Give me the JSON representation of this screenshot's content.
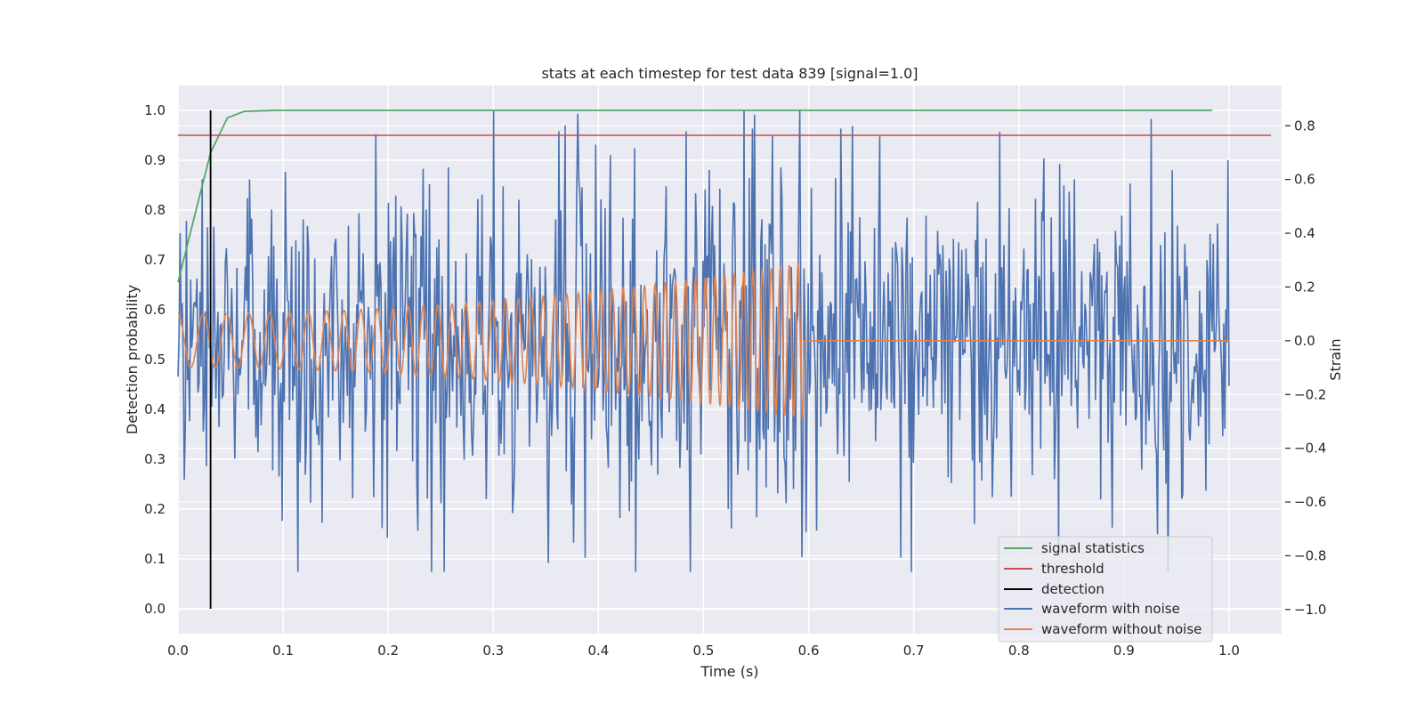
{
  "chart_data": {
    "type": "line",
    "title": "stats at each timestep for test data 839 [signal=1.0]",
    "xlabel": "Time (s)",
    "ylabel": "Detection probability",
    "ylabel_right": "Strain",
    "xlim": [
      0.0,
      1.05
    ],
    "ylim": [
      -0.05,
      1.05
    ],
    "ylim_right": [
      -1.09,
      0.95
    ],
    "xticks": [
      "0.0",
      "0.1",
      "0.2",
      "0.3",
      "0.4",
      "0.5",
      "0.6",
      "0.7",
      "0.8",
      "0.9",
      "1.0"
    ],
    "yticks": [
      "0.0",
      "0.1",
      "0.2",
      "0.3",
      "0.4",
      "0.5",
      "0.6",
      "0.7",
      "0.8",
      "0.9",
      "1.0"
    ],
    "yticks_right": [
      "−1.0",
      "−0.8",
      "−0.6",
      "−0.4",
      "−0.2",
      "0.0",
      "0.2",
      "0.4",
      "0.6",
      "0.8"
    ],
    "grid": true,
    "legend_position": "lower-right",
    "colors": {
      "signal_statistics": "#55a868",
      "threshold": "#c44e52",
      "detection": "#000000",
      "waveform_with_noise": "#4c72b0",
      "waveform_without_noise": "#dd8452"
    },
    "series": [
      {
        "name": "signal statistics",
        "axis": "left",
        "x": [
          0.0,
          0.016,
          0.031,
          0.047,
          0.063,
          0.078,
          0.094,
          0.2,
          0.4,
          0.6,
          0.8,
          0.984
        ],
        "y": [
          0.655,
          0.79,
          0.915,
          0.985,
          0.998,
          0.999,
          1.0,
          1.0,
          1.0,
          1.0,
          1.0,
          1.0
        ]
      },
      {
        "name": "threshold",
        "axis": "left",
        "x": [
          0.0,
          1.04
        ],
        "y": [
          0.95,
          0.95
        ]
      },
      {
        "name": "detection",
        "axis": "left",
        "x": [
          0.031,
          0.031
        ],
        "y": [
          0.0,
          1.0
        ]
      },
      {
        "name": "waveform with noise",
        "axis": "right",
        "x_range": [
          0.0,
          1.0
        ],
        "n_points": 1000,
        "amplitude_range": [
          -0.86,
          0.86
        ],
        "noise_std": 0.3,
        "y_peaks": [
          {
            "x": 0.362,
            "y": 0.78
          },
          {
            "x": 0.592,
            "y": 0.86
          },
          {
            "x": 0.435,
            "y": -0.86
          },
          {
            "x": 0.838,
            "y": -0.8
          }
        ]
      },
      {
        "name": "waveform without noise",
        "axis": "right",
        "x_range": [
          0.0,
          1.0
        ],
        "chirp_end": 0.595,
        "amplitude_start": 0.1,
        "amplitude_end": 0.29,
        "frequency_start_hz": 40,
        "frequency_end_hz": 120,
        "after_chirp_value": 0.0
      }
    ]
  }
}
